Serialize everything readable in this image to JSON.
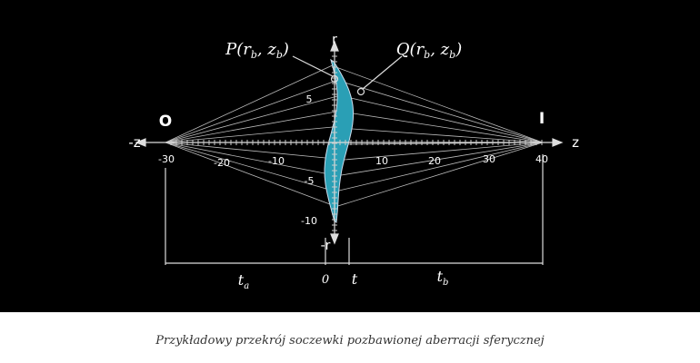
{
  "diagram": {
    "axis_labels": {
      "neg_z": "-z",
      "z": "z",
      "r": "r",
      "neg_r": "-r"
    },
    "points": {
      "object": "O",
      "image": "I"
    },
    "z_ticks": [
      "-30",
      "-20",
      "-10",
      "10",
      "20",
      "30",
      "40"
    ],
    "r_ticks": [
      "5",
      "-5",
      "-10"
    ],
    "point_labels": [
      {
        "prefix": "P(r",
        "sub1": "b",
        "mid": ", z",
        "sub2": "b",
        "suffix": ")"
      },
      {
        "prefix": "Q(r",
        "sub1": "b",
        "mid": ", z",
        "sub2": "b",
        "suffix": ")"
      }
    ],
    "dimensions": {
      "ta": {
        "text": "t",
        "sub": "a"
      },
      "zero": "0",
      "t": "t",
      "tb": {
        "text": "t",
        "sub": "b"
      }
    }
  },
  "caption": "Przykładowy przekrój soczewki pozbawionej aberracji sferycznej"
}
